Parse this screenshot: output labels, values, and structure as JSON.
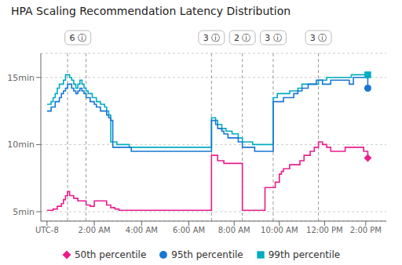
{
  "chart_data": {
    "type": "line",
    "title": "HPA Scaling Recommendation Latency Distribution",
    "xlim": [
      -0.3,
      16.5
    ],
    "xticks": [
      {
        "value": 0,
        "label": "UTC-8"
      },
      {
        "value": 2.3,
        "label": "2:00 AM"
      },
      {
        "value": 4.6,
        "label": "4:00 AM"
      },
      {
        "value": 6.9,
        "label": "6:00 AM"
      },
      {
        "value": 9.1,
        "label": "8:00 AM"
      },
      {
        "value": 11.3,
        "label": "10:00 AM"
      },
      {
        "value": 13.5,
        "label": "12:00 PM"
      },
      {
        "value": 15.5,
        "label": "2:00 PM"
      }
    ],
    "ylim": [
      4.3,
      16.8
    ],
    "yticks": [
      {
        "value": 5,
        "label": "5min"
      },
      {
        "value": 10,
        "label": "10min"
      },
      {
        "value": 15,
        "label": "15min"
      }
    ],
    "grid": "y",
    "legend": "bottom",
    "vlines": [
      1.0,
      1.9,
      8.0,
      9.5,
      11.0,
      13.2
    ],
    "annotations": [
      {
        "x": 1.5,
        "text": "6 ⓘ"
      },
      {
        "x": 8.0,
        "text": "3 ⓘ"
      },
      {
        "x": 9.5,
        "text": "2 ⓘ"
      },
      {
        "x": 11.0,
        "text": "3 ⓘ"
      },
      {
        "x": 13.2,
        "text": "3 ⓘ"
      }
    ],
    "series": [
      {
        "name": "50th percentile",
        "color": "#E91E8C",
        "marker": "diamond",
        "line_style": "step",
        "x": [
          0.0,
          0.3,
          0.5,
          0.7,
          0.8,
          0.9,
          1.0,
          1.1,
          1.3,
          1.5,
          1.7,
          1.9,
          2.1,
          2.3,
          2.5,
          2.7,
          2.9,
          3.1,
          3.3,
          3.5,
          3.8,
          4.1,
          4.4,
          4.7,
          5.0,
          5.3,
          5.6,
          5.9,
          6.2,
          6.5,
          6.8,
          7.0,
          7.1,
          7.2,
          7.3,
          7.4,
          7.5,
          7.6,
          7.7,
          7.8,
          7.9,
          8.0,
          8.1,
          8.2,
          8.3,
          8.4,
          8.5,
          8.6,
          8.7,
          8.8,
          8.9,
          9.0,
          9.1,
          9.2,
          9.3,
          9.4,
          9.5,
          9.6,
          9.7,
          9.8,
          9.9,
          10.0,
          10.1,
          10.2,
          10.3,
          10.4,
          10.5,
          10.6,
          10.7,
          10.8,
          10.9,
          11.0,
          11.1,
          11.2,
          11.3,
          11.4,
          11.5,
          11.6,
          11.7,
          11.8,
          11.9,
          12.0,
          12.1,
          12.2,
          12.3,
          12.4,
          12.5,
          12.6,
          12.7,
          12.8,
          12.9,
          13.0,
          13.1,
          13.2,
          13.3,
          13.4,
          13.5,
          13.6,
          13.7,
          13.8,
          13.9,
          14.0,
          14.1,
          14.2,
          14.3,
          14.4,
          14.5,
          14.6,
          14.7,
          14.8,
          14.9,
          15.0,
          15.2,
          15.4,
          15.6
        ],
        "values": [
          5.1,
          5.2,
          5.4,
          5.6,
          5.9,
          6.2,
          6.5,
          6.2,
          6.0,
          5.8,
          5.8,
          5.5,
          5.4,
          5.8,
          5.8,
          5.8,
          5.5,
          5.3,
          5.2,
          5.1,
          5.1,
          5.1,
          5.1,
          5.1,
          5.1,
          5.1,
          5.1,
          5.1,
          5.1,
          5.1,
          5.1,
          5.1,
          5.1,
          5.1,
          5.1,
          5.1,
          5.1,
          5.1,
          5.1,
          5.1,
          5.1,
          9.2,
          9.2,
          9.2,
          8.8,
          8.8,
          8.8,
          8.6,
          8.6,
          8.6,
          8.6,
          8.6,
          8.6,
          8.6,
          8.6,
          8.6,
          5.1,
          5.1,
          5.1,
          5.1,
          5.1,
          5.1,
          5.1,
          5.1,
          5.1,
          5.1,
          5.1,
          6.8,
          6.8,
          6.8,
          6.8,
          6.8,
          7.2,
          7.2,
          7.8,
          8.0,
          8.2,
          8.2,
          8.2,
          8.5,
          8.5,
          8.5,
          8.5,
          8.5,
          8.8,
          8.8,
          9.2,
          9.2,
          9.2,
          9.5,
          9.5,
          9.8,
          9.8,
          10.2,
          10.2,
          10.0,
          10.0,
          9.8,
          9.8,
          9.5,
          9.5,
          9.5,
          9.5,
          9.5,
          9.5,
          9.5,
          9.8,
          9.8,
          9.8,
          9.8,
          9.8,
          9.8,
          9.8,
          9.5,
          9.0
        ]
      },
      {
        "name": "95th percentile",
        "color": "#1976D2",
        "marker": "circle",
        "line_style": "step",
        "x": [
          0.0,
          0.2,
          0.4,
          0.6,
          0.7,
          0.8,
          0.9,
          1.0,
          1.1,
          1.2,
          1.3,
          1.4,
          1.5,
          1.6,
          1.7,
          1.8,
          1.9,
          2.0,
          2.1,
          2.2,
          2.3,
          2.4,
          2.5,
          2.6,
          2.7,
          2.8,
          2.9,
          3.0,
          3.1,
          3.2,
          3.3,
          3.5,
          3.7,
          3.9,
          4.1,
          4.3,
          4.5,
          4.7,
          4.9,
          5.1,
          5.3,
          5.5,
          5.7,
          5.9,
          6.1,
          6.3,
          6.5,
          6.7,
          6.9,
          7.1,
          7.3,
          7.5,
          7.7,
          7.9,
          8.0,
          8.1,
          8.2,
          8.3,
          8.4,
          8.5,
          8.6,
          8.7,
          8.8,
          8.9,
          9.0,
          9.1,
          9.2,
          9.3,
          9.4,
          9.5,
          9.6,
          9.7,
          9.8,
          9.9,
          10.0,
          10.1,
          10.2,
          10.3,
          10.4,
          10.5,
          10.6,
          10.7,
          10.8,
          10.9,
          11.0,
          11.1,
          11.2,
          11.3,
          11.4,
          11.5,
          11.6,
          11.7,
          11.8,
          11.9,
          12.0,
          12.1,
          12.2,
          12.3,
          12.4,
          12.5,
          12.6,
          12.7,
          12.8,
          12.9,
          13.0,
          13.1,
          13.2,
          13.3,
          13.4,
          13.5,
          13.6,
          13.7,
          13.8,
          13.9,
          14.0,
          14.1,
          14.2,
          14.3,
          14.4,
          14.5,
          14.6,
          14.7,
          14.8,
          14.9,
          15.0,
          15.2,
          15.4,
          15.6
        ],
        "values": [
          12.5,
          12.8,
          13.2,
          13.5,
          13.8,
          14.0,
          14.2,
          14.5,
          14.5,
          14.2,
          14.0,
          13.8,
          14.0,
          14.2,
          14.0,
          13.8,
          13.5,
          13.5,
          13.2,
          13.2,
          13.0,
          12.8,
          12.8,
          12.5,
          12.5,
          12.5,
          12.2,
          12.0,
          11.8,
          9.8,
          9.8,
          9.8,
          9.8,
          9.8,
          9.5,
          9.5,
          9.5,
          9.5,
          9.5,
          9.5,
          9.5,
          9.5,
          9.5,
          9.5,
          9.5,
          9.5,
          9.5,
          9.5,
          9.5,
          9.5,
          9.5,
          9.5,
          9.5,
          9.5,
          11.8,
          11.8,
          11.5,
          11.2,
          11.2,
          11.0,
          10.8,
          10.8,
          10.5,
          10.5,
          10.5,
          10.5,
          10.5,
          10.2,
          10.2,
          9.8,
          9.8,
          9.8,
          9.8,
          9.8,
          9.8,
          9.5,
          9.5,
          9.5,
          9.5,
          9.5,
          9.5,
          9.5,
          9.5,
          9.5,
          13.2,
          13.2,
          13.2,
          13.2,
          13.2,
          13.5,
          13.5,
          13.5,
          13.5,
          13.5,
          13.8,
          13.8,
          14.0,
          14.0,
          14.2,
          14.2,
          14.2,
          14.5,
          14.5,
          14.5,
          14.5,
          14.8,
          14.8,
          14.8,
          14.5,
          14.5,
          14.5,
          14.5,
          14.8,
          14.8,
          14.8,
          14.8,
          14.8,
          14.8,
          14.8,
          14.8,
          14.8,
          14.5,
          14.5,
          15.0,
          15.0,
          15.0,
          15.0,
          14.2
        ]
      },
      {
        "name": "99th percentile",
        "color": "#00ACC1",
        "marker": "square",
        "line_style": "step",
        "x": [
          0.0,
          0.1,
          0.2,
          0.3,
          0.4,
          0.5,
          0.6,
          0.7,
          0.8,
          0.9,
          1.0,
          1.1,
          1.2,
          1.3,
          1.4,
          1.5,
          1.6,
          1.7,
          1.8,
          1.9,
          2.0,
          2.1,
          2.2,
          2.3,
          2.4,
          2.5,
          2.6,
          2.7,
          2.8,
          2.9,
          3.0,
          3.1,
          3.2,
          3.4,
          3.6,
          3.8,
          4.0,
          4.2,
          4.4,
          4.6,
          4.8,
          5.0,
          5.2,
          5.4,
          5.6,
          5.8,
          6.0,
          6.2,
          6.4,
          6.6,
          6.8,
          7.0,
          7.2,
          7.4,
          7.6,
          7.8,
          7.9,
          8.0,
          8.1,
          8.2,
          8.3,
          8.4,
          8.5,
          8.6,
          8.7,
          8.8,
          8.9,
          9.0,
          9.1,
          9.2,
          9.3,
          9.4,
          9.5,
          9.6,
          9.7,
          9.8,
          9.9,
          10.0,
          10.1,
          10.2,
          10.3,
          10.4,
          10.5,
          10.6,
          10.7,
          10.8,
          10.9,
          11.0,
          11.2,
          11.4,
          11.6,
          11.8,
          12.0,
          12.2,
          12.4,
          12.6,
          12.8,
          13.0,
          13.2,
          13.4,
          13.6,
          13.8,
          14.0,
          14.2,
          14.4,
          14.6,
          14.8,
          15.0,
          15.2,
          15.4,
          15.6
        ],
        "values": [
          13.0,
          13.0,
          13.2,
          13.5,
          13.8,
          14.2,
          14.5,
          14.5,
          14.8,
          15.2,
          15.2,
          15.0,
          14.8,
          14.5,
          14.2,
          14.5,
          14.8,
          14.5,
          14.2,
          14.0,
          13.8,
          13.8,
          13.5,
          13.5,
          13.2,
          13.2,
          13.0,
          13.0,
          12.8,
          12.5,
          12.2,
          10.2,
          10.2,
          10.0,
          10.0,
          10.0,
          9.8,
          9.8,
          9.8,
          9.8,
          9.8,
          9.8,
          9.8,
          9.8,
          9.8,
          9.8,
          9.8,
          9.8,
          9.8,
          9.8,
          9.8,
          9.8,
          9.8,
          9.8,
          9.8,
          9.8,
          9.8,
          12.0,
          12.0,
          11.8,
          11.5,
          11.5,
          11.2,
          11.2,
          11.0,
          11.0,
          11.0,
          10.8,
          10.8,
          10.8,
          10.5,
          10.5,
          10.2,
          10.2,
          10.2,
          10.2,
          10.2,
          10.0,
          10.0,
          10.0,
          10.0,
          10.0,
          10.0,
          10.0,
          10.0,
          10.0,
          10.0,
          13.5,
          13.8,
          13.8,
          13.8,
          14.0,
          14.0,
          14.2,
          14.5,
          14.5,
          14.5,
          14.5,
          14.8,
          14.8,
          15.0,
          15.0,
          15.0,
          15.0,
          15.0,
          15.0,
          15.2,
          15.2,
          15.2,
          15.2,
          15.2
        ]
      }
    ]
  }
}
